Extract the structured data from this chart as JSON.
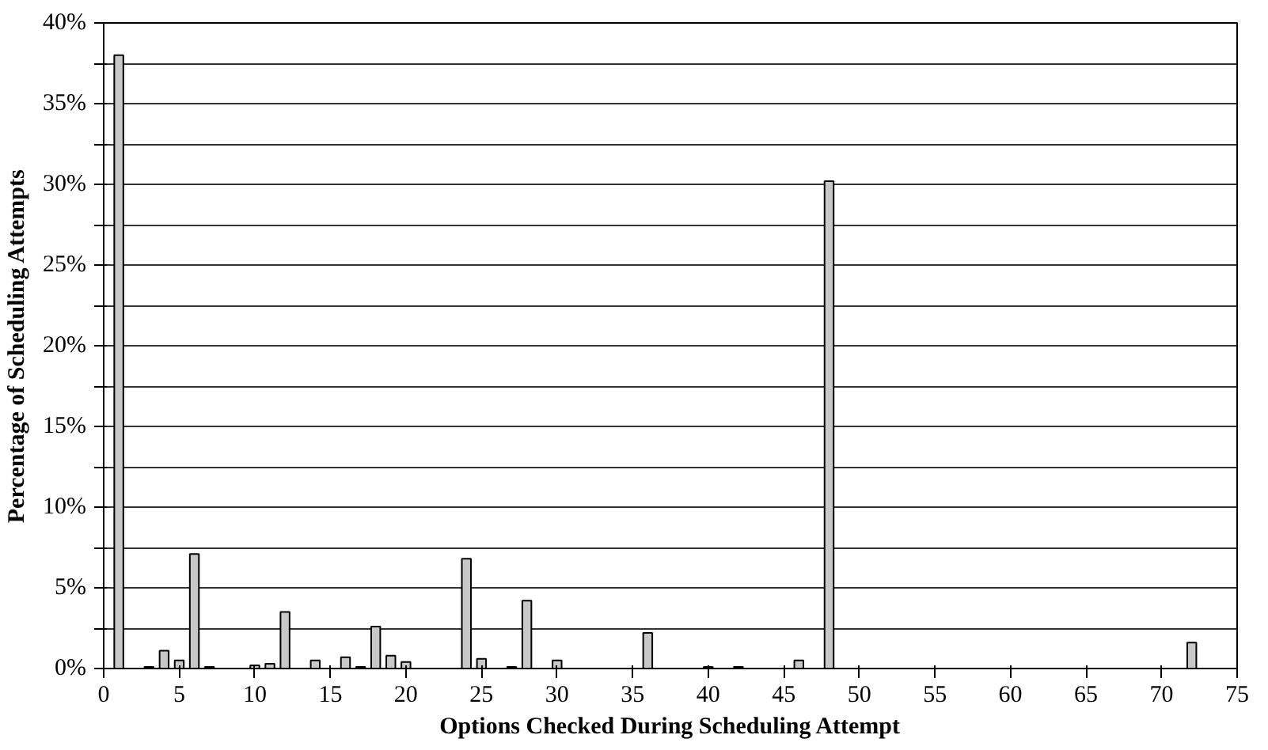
{
  "chart_data": {
    "type": "bar",
    "xlabel": "Options Checked During Scheduling Attempt",
    "ylabel": "Percentage of Scheduling Attempts",
    "x": [
      1,
      3,
      4,
      5,
      6,
      7,
      10,
      11,
      12,
      14,
      16,
      17,
      18,
      19,
      20,
      24,
      25,
      27,
      28,
      30,
      36,
      40,
      42,
      46,
      48,
      72
    ],
    "values": [
      38,
      0.1,
      1.1,
      0.5,
      7.1,
      0.1,
      0.2,
      0.3,
      3.5,
      0.5,
      0.7,
      0.1,
      2.6,
      0.8,
      0.4,
      6.8,
      0.6,
      0.1,
      4.2,
      0.5,
      2.2,
      0.1,
      0.1,
      0.5,
      30.2,
      1.6
    ],
    "color": "#c8c8c8",
    "xlim": [
      0,
      75
    ],
    "xticks": [
      0,
      5,
      10,
      15,
      20,
      25,
      30,
      35,
      40,
      45,
      50,
      55,
      60,
      65,
      70,
      75
    ],
    "ylim": [
      0,
      40
    ],
    "yticks": [
      {
        "value": 0,
        "label": "0%"
      },
      {
        "value": 2.5,
        "label": null
      },
      {
        "value": 5,
        "label": "5%"
      },
      {
        "value": 7.5,
        "label": null
      },
      {
        "value": 10,
        "label": "10%"
      },
      {
        "value": 12.5,
        "label": null
      },
      {
        "value": 15,
        "label": "15%"
      },
      {
        "value": 17.5,
        "label": null
      },
      {
        "value": 20,
        "label": "20%"
      },
      {
        "value": 22.5,
        "label": null
      },
      {
        "value": 25,
        "label": "25%"
      },
      {
        "value": 27.5,
        "label": null
      },
      {
        "value": 30,
        "label": "30%"
      },
      {
        "value": 32.5,
        "label": null
      },
      {
        "value": 35,
        "label": "35%"
      },
      {
        "value": 37.5,
        "label": null
      },
      {
        "value": 40,
        "label": "40%"
      }
    ],
    "grid": "y"
  }
}
